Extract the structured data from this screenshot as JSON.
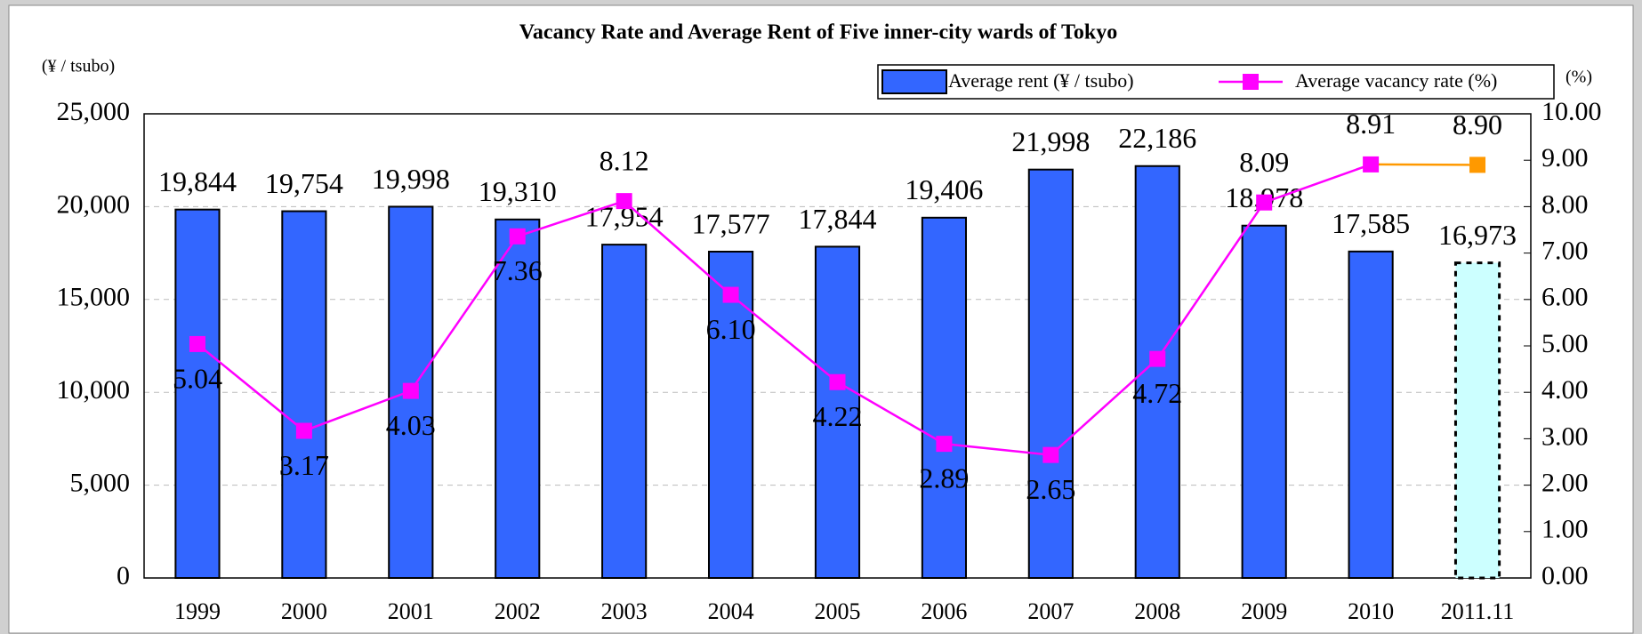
{
  "chart_data": {
    "type": "bar_line",
    "title": "Vacancy Rate and Average Rent of Five inner-city wards of Tokyo",
    "y_unit_label": "(¥ / tsubo)",
    "y2_unit_label": "(%)",
    "categories": [
      "1999",
      "2000",
      "2001",
      "2002",
      "2003",
      "2004",
      "2005",
      "2006",
      "2007",
      "2008",
      "2009",
      "2010",
      "2011.11"
    ],
    "series": [
      {
        "name": "Average rent (¥ / tsubo)",
        "type": "bar",
        "color": "#3366ff",
        "last_point_color": "#ccffff",
        "values": [
          19844,
          19754,
          19998,
          19310,
          17954,
          17577,
          17844,
          19406,
          21998,
          22186,
          18978,
          17585,
          16973
        ],
        "value_labels": [
          "19,844",
          "19,754",
          "19,998",
          "19,310",
          "17,954",
          "17,577",
          "17,844",
          "19,406",
          "21,998",
          "22,186",
          "18,978",
          "17,585",
          "16,973"
        ]
      },
      {
        "name": "Average vacancy rate (%)",
        "type": "line",
        "axis": "y2",
        "color": "#ff00ff",
        "last_point_color": "#ff9900",
        "values": [
          5.04,
          3.17,
          4.03,
          7.36,
          8.12,
          6.1,
          4.22,
          2.89,
          2.65,
          4.72,
          8.09,
          8.91,
          8.9
        ],
        "value_labels": [
          "5.04",
          "3.17",
          "4.03",
          "7.36",
          "8.12",
          "6.10",
          "4.22",
          "2.89",
          "2.65",
          "4.72",
          "8.09",
          "8.91",
          "8.90"
        ]
      }
    ],
    "ylim": [
      0,
      25000
    ],
    "yticks": [
      0,
      {
        "value": 5000,
        "label": "5,000"
      },
      {
        "value": 10000,
        "label": "10,000"
      },
      {
        "value": 15000,
        "label": "15,000"
      },
      {
        "value": 20000,
        "label": "20,000"
      },
      {
        "value": 25000,
        "label": "25,000"
      }
    ],
    "y2lim": [
      0,
      10
    ],
    "y2ticks": [
      {
        "value": 0,
        "label": "0.00"
      },
      {
        "value": 1,
        "label": "1.00"
      },
      {
        "value": 2,
        "label": "2.00"
      },
      {
        "value": 3,
        "label": "3.00"
      },
      {
        "value": 4,
        "label": "4.00"
      },
      {
        "value": 5,
        "label": "5.00"
      },
      {
        "value": 6,
        "label": "6.00"
      },
      {
        "value": 7,
        "label": "7.00"
      },
      {
        "value": 8,
        "label": "8.00"
      },
      {
        "value": 9,
        "label": "9.00"
      },
      {
        "value": 10,
        "label": "10.00"
      }
    ],
    "grid": true
  }
}
